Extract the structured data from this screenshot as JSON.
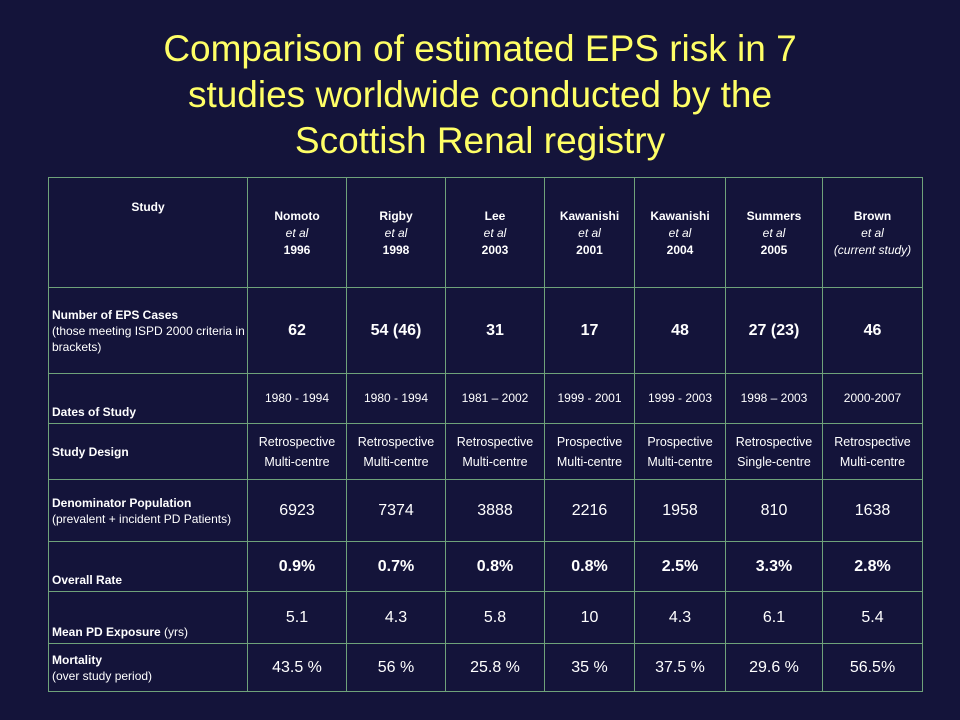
{
  "title": {
    "line1": "Comparison of estimated EPS risk in 7",
    "line2": "studies worldwide conducted by the",
    "line3": "Scottish Renal registry"
  },
  "table": {
    "corner_label": "Study",
    "studies": [
      {
        "name": "Nomoto",
        "etal": "et al",
        "year": "1996"
      },
      {
        "name": "Rigby",
        "etal": "et al",
        "year": "1998"
      },
      {
        "name": "Lee",
        "etal": "et al",
        "year": "2003"
      },
      {
        "name": "Kawanishi",
        "etal": "et al",
        "year": "2001"
      },
      {
        "name": "Kawanishi",
        "etal": "et al",
        "year": "2004"
      },
      {
        "name": "Summers",
        "etal": "et al",
        "year": "2005"
      },
      {
        "name": "Brown",
        "etal": "et al",
        "year": "(current study)"
      }
    ],
    "rows": {
      "eps_cases": {
        "label": "Number of EPS Cases",
        "sublabel": "(those meeting ISPD 2000 criteria in brackets)",
        "values": [
          "62",
          "54 (46)",
          "31",
          "17",
          "48",
          "27 (23)",
          "46"
        ]
      },
      "dates": {
        "label": "Dates of Study",
        "values": [
          "1980 - 1994",
          "1980 - 1994",
          "1981 – 2002",
          "1999 - 2001",
          "1999 - 2003",
          "1998 – 2003",
          "2000-2007"
        ]
      },
      "design": {
        "label": "Study Design",
        "values": [
          {
            "type": "Retrospective",
            "scope": "Multi-centre"
          },
          {
            "type": "Retrospective",
            "scope": "Multi-centre"
          },
          {
            "type": "Retrospective",
            "scope": "Multi-centre"
          },
          {
            "type": "Prospective",
            "scope": "Multi-centre"
          },
          {
            "type": "Prospective",
            "scope": "Multi-centre"
          },
          {
            "type": "Retrospective",
            "scope": "Single-centre"
          },
          {
            "type": "Retrospective",
            "scope": "Multi-centre"
          }
        ]
      },
      "denominator": {
        "label": "Denominator Population",
        "sublabel": "(prevalent + incident PD Patients)",
        "values": [
          "6923",
          "7374",
          "3888",
          "2216",
          "1958",
          "810",
          "1638"
        ]
      },
      "overall_rate": {
        "label": "Overall Rate",
        "values": [
          "0.9%",
          "0.7%",
          "0.8%",
          "0.8%",
          "2.5%",
          "3.3%",
          "2.8%"
        ]
      },
      "exposure": {
        "label": "Mean PD Exposure",
        "unit": "(yrs)",
        "values": [
          "5.1",
          "4.3",
          "5.8",
          "10",
          "4.3",
          "6.1",
          "5.4"
        ]
      },
      "mortality": {
        "label": "Mortality",
        "sublabel": "(over study period)",
        "values": [
          "43.5 %",
          "56 %",
          "25.8 %",
          "35 %",
          "37.5 %",
          "29.6 %",
          "56.5%"
        ]
      }
    }
  }
}
